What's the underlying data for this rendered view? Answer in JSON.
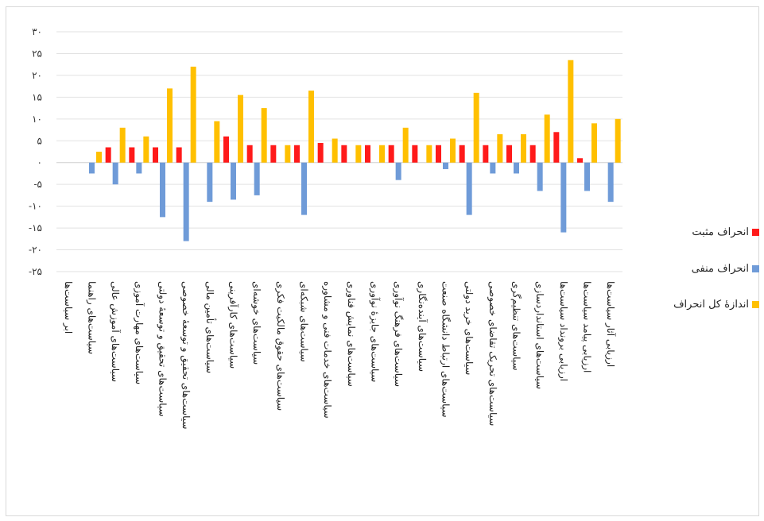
{
  "chart_data": {
    "type": "bar",
    "title": "",
    "xlabel": "",
    "ylabel": "",
    "ylim": [
      -25,
      30
    ],
    "y_ticks": [
      "۳۰",
      "۲۵",
      "۲۰",
      "۱۵",
      "۱۰",
      "۵",
      "۰",
      "-۵",
      "-۱۰",
      "-۱۵",
      "-۲۰",
      "-۲۵"
    ],
    "grid": true,
    "legend_position": "right",
    "categories": [
      "ابر سیاست‌ها",
      "سیاست‌های راهنما",
      "سیاست‌های آموزش عالی",
      "سیاست‌های مهارت آموزی",
      "سیاست‌های تحقیق و توسعهٔ دولتی",
      "سیاست‌های تحقیق و توسعهٔ خصوصی",
      "سیاست‌های تأمین مالی",
      "سیاست‌های کارآفرینی",
      "سیاست‌های خوشه‌ای",
      "سیاست‌های حقوق مالکیت فکری",
      "سیاست‌های شبکه‌ای",
      "سیاست‌های خدمات فنی و مشاوره",
      "سیاست‌های نمایش فناوری",
      "سیاست‌های جایزهٔ نوآوری",
      "سیاست‌های فرهنگ نوآوری",
      "سیاست‌های آینده‌نگاری",
      "سیاست‌های ارتباط دانشگاه صنعت",
      "سیاست‌های خرید دولتی",
      "سیاست‌های تحریک تقاضای خصوصی",
      "سیاست‌های تنظیم‌گری",
      "سیاست‌های استانداردسازی",
      "ارزیابی برونداد سیاست‌ها",
      "ارزیابی پیامد سیاست‌ها",
      "ارزیابی آثار سیاست‌ها"
    ],
    "series": [
      {
        "name": "انحراف مثبت",
        "color": "#ff1a1a",
        "values": [
          0,
          0,
          3.5,
          3.5,
          3.5,
          3.5,
          0,
          6,
          4,
          4,
          4,
          4.5,
          4,
          4,
          4,
          4,
          4,
          4,
          4,
          4,
          4,
          7,
          1,
          0
        ]
      },
      {
        "name": "انحراف منفی",
        "color": "#6f9bd8",
        "values": [
          0,
          -2.5,
          -5,
          -2.5,
          -12.5,
          -18,
          -9,
          -8.5,
          -7.5,
          0,
          -12,
          0,
          0,
          0,
          -4,
          0,
          -1.5,
          -12,
          -2.5,
          -2.5,
          -6.5,
          -16,
          -6.5,
          -9
        ]
      },
      {
        "name": "اندازهٔ کل انحراف",
        "color": "#ffc000",
        "values": [
          0,
          2.5,
          8,
          6,
          17,
          22,
          9.5,
          15.5,
          12.5,
          4,
          16.5,
          5.5,
          4,
          4,
          8,
          4,
          5.5,
          16,
          6.5,
          6.5,
          11,
          23.5,
          9,
          10
        ]
      }
    ]
  }
}
